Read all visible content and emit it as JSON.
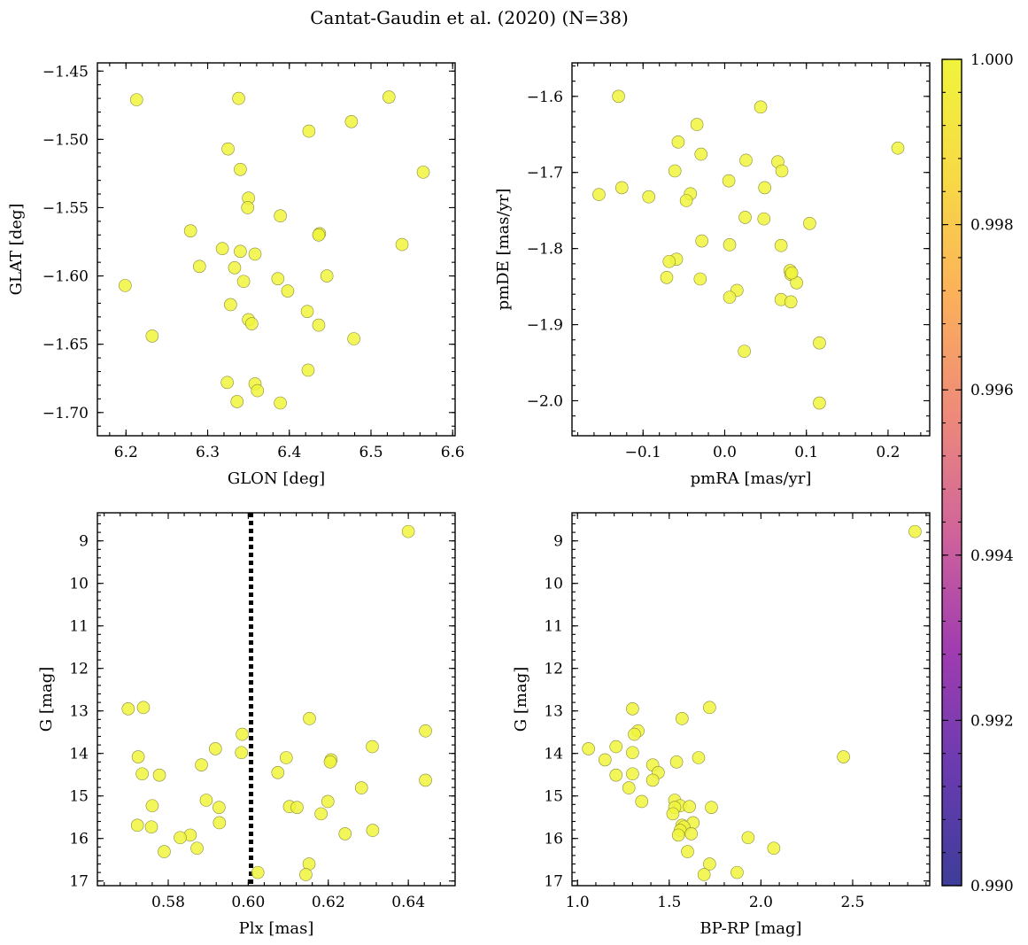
{
  "figure": {
    "title": "Cantat-Gaudin et al. (2020) (N=38)"
  },
  "colorbar": {
    "min": 0.99,
    "max": 1.0,
    "ticks": [
      "0.990",
      "0.992",
      "0.994",
      "0.996",
      "0.998",
      "1.000"
    ],
    "tick_values": [
      0.99,
      0.992,
      0.994,
      0.996,
      0.998,
      1.0
    ],
    "colormap": "plasma",
    "stops": [
      "#3d3d99",
      "#6a3bb0",
      "#a03cb0",
      "#d0649a",
      "#ee8a7a",
      "#fbb05a",
      "#f7da45",
      "#f0f43c"
    ]
  },
  "point_color": "#f0f43c",
  "chart_data": [
    {
      "type": "scatter",
      "id": "glon-glat",
      "xlabel": "GLON [deg]",
      "ylabel": "GLAT [deg]",
      "xlim": [
        6.165,
        6.603
      ],
      "ylim": [
        -1.717,
        -1.444
      ],
      "invert_y": false,
      "xticks": [
        6.2,
        6.3,
        6.4,
        6.5,
        6.6
      ],
      "xtick_labels": [
        "6.2",
        "6.3",
        "6.4",
        "6.5",
        "6.6"
      ],
      "yticks": [
        -1.7,
        -1.65,
        -1.6,
        -1.55,
        -1.5,
        -1.45
      ],
      "ytick_labels": [
        "−1.70",
        "−1.65",
        "−1.60",
        "−1.55",
        "−1.50",
        "−1.45"
      ],
      "x": [
        6.213,
        6.338,
        6.522,
        6.476,
        6.424,
        6.325,
        6.564,
        6.34,
        6.35,
        6.349,
        6.389,
        6.437,
        6.436,
        6.279,
        6.538,
        6.318,
        6.34,
        6.358,
        6.29,
        6.333,
        6.344,
        6.386,
        6.446,
        6.199,
        6.398,
        6.328,
        6.422,
        6.35,
        6.354,
        6.436,
        6.232,
        6.479,
        6.423,
        6.324,
        6.358,
        6.361,
        6.336,
        6.389
      ],
      "y": [
        -1.471,
        -1.47,
        -1.469,
        -1.487,
        -1.494,
        -1.507,
        -1.524,
        -1.522,
        -1.543,
        -1.55,
        -1.556,
        -1.569,
        -1.57,
        -1.567,
        -1.577,
        -1.58,
        -1.582,
        -1.584,
        -1.593,
        -1.594,
        -1.604,
        -1.602,
        -1.6,
        -1.607,
        -1.611,
        -1.621,
        -1.626,
        -1.632,
        -1.635,
        -1.636,
        -1.644,
        -1.646,
        -1.669,
        -1.678,
        -1.679,
        -1.684,
        -1.692,
        -1.693
      ]
    },
    {
      "type": "scatter",
      "id": "pmra-pmde",
      "xlabel": "pmRA [mas/yr]",
      "ylabel": "pmDE [mas/yr]",
      "xlim": [
        -0.187,
        0.251
      ],
      "ylim": [
        -2.046,
        -1.556
      ],
      "invert_y": false,
      "xticks": [
        -0.1,
        0.0,
        0.1,
        0.2
      ],
      "xtick_labels": [
        "−0.1",
        "0.0",
        "0.1",
        "0.2"
      ],
      "yticks": [
        -2.0,
        -1.9,
        -1.8,
        -1.7,
        -1.6
      ],
      "ytick_labels": [
        "−2.0",
        "−1.9",
        "−1.8",
        "−1.7",
        "−1.6"
      ],
      "x": [
        -0.13,
        0.044,
        -0.034,
        0.212,
        -0.057,
        -0.029,
        0.065,
        0.026,
        -0.061,
        0.07,
        0.005,
        -0.126,
        -0.154,
        0.049,
        -0.093,
        -0.042,
        -0.047,
        0.025,
        0.048,
        0.104,
        -0.028,
        0.006,
        0.069,
        0.08,
        0.081,
        0.088,
        -0.059,
        -0.068,
        -0.071,
        -0.03,
        0.015,
        0.006,
        0.069,
        0.081,
        0.116,
        0.024,
        0.116,
        0.082
      ],
      "y": [
        -1.6,
        -1.614,
        -1.637,
        -1.668,
        -1.66,
        -1.676,
        -1.686,
        -1.684,
        -1.698,
        -1.698,
        -1.711,
        -1.72,
        -1.729,
        -1.72,
        -1.732,
        -1.728,
        -1.737,
        -1.759,
        -1.761,
        -1.767,
        -1.79,
        -1.795,
        -1.796,
        -1.829,
        -1.834,
        -1.845,
        -1.814,
        -1.817,
        -1.838,
        -1.84,
        -1.855,
        -1.864,
        -1.867,
        -1.87,
        -1.924,
        -1.935,
        -2.003,
        -1.832
      ]
    },
    {
      "type": "scatter",
      "id": "plx-g",
      "xlabel": "Plx [mas]",
      "ylabel": "G [mag]",
      "xlim": [
        0.5623,
        0.6517
      ],
      "ylim": [
        8.34,
        17.11
      ],
      "invert_y": true,
      "vline": {
        "x": 0.6007,
        "style": "dotted",
        "color": "#000000"
      },
      "xticks": [
        0.58,
        0.6,
        0.62,
        0.64
      ],
      "xtick_labels": [
        "0.58",
        "0.60",
        "0.62",
        "0.64"
      ],
      "yticks": [
        9,
        10,
        11,
        12,
        13,
        14,
        15,
        16,
        17
      ],
      "ytick_labels": [
        "9",
        "10",
        "11",
        "12",
        "13",
        "14",
        "15",
        "16",
        "17"
      ],
      "x": [
        0.64,
        0.57,
        0.5738,
        0.6153,
        0.6443,
        0.5985,
        0.631,
        0.5918,
        0.5983,
        0.6095,
        0.6207,
        0.6205,
        0.5725,
        0.5883,
        0.6074,
        0.5735,
        0.5778,
        0.6283,
        0.6443,
        0.5895,
        0.6199,
        0.576,
        0.6103,
        0.5927,
        0.6122,
        0.6182,
        0.5928,
        0.5723,
        0.5758,
        0.6311,
        0.6242,
        0.5855,
        0.583,
        0.5872,
        0.579,
        0.6152,
        0.6024,
        0.6144
      ],
      "y": [
        8.78,
        12.95,
        12.92,
        13.18,
        13.47,
        13.55,
        13.84,
        13.89,
        13.98,
        14.1,
        14.15,
        14.2,
        14.08,
        14.27,
        14.45,
        14.48,
        14.51,
        14.81,
        14.63,
        15.1,
        15.13,
        15.23,
        15.25,
        15.27,
        15.27,
        15.42,
        15.63,
        15.69,
        15.73,
        15.81,
        15.89,
        15.92,
        15.98,
        16.23,
        16.31,
        16.6,
        16.8,
        16.85
      ]
    },
    {
      "type": "scatter",
      "id": "bprp-g",
      "xlabel": "BP-RP [mag]",
      "ylabel": "G [mag]",
      "xlim": [
        0.97,
        2.92
      ],
      "ylim": [
        8.34,
        17.11
      ],
      "invert_y": true,
      "xticks": [
        1.0,
        1.5,
        2.0,
        2.5
      ],
      "xtick_labels": [
        "1.0",
        "1.5",
        "2.0",
        "2.5"
      ],
      "yticks": [
        9,
        10,
        11,
        12,
        13,
        14,
        15,
        16,
        17
      ],
      "ytick_labels": [
        "9",
        "10",
        "11",
        "12",
        "13",
        "14",
        "15",
        "16",
        "17"
      ],
      "x": [
        2.84,
        1.3,
        1.72,
        1.57,
        1.33,
        1.31,
        1.21,
        1.06,
        1.3,
        1.66,
        1.15,
        1.54,
        2.45,
        1.41,
        1.44,
        1.3,
        1.21,
        1.28,
        1.41,
        1.53,
        1.35,
        1.56,
        1.61,
        1.73,
        1.53,
        1.52,
        1.63,
        1.57,
        1.58,
        1.56,
        1.62,
        1.93,
        2.07,
        1.6,
        1.72,
        1.69,
        1.87,
        1.55
      ],
      "y": [
        8.78,
        12.95,
        12.92,
        13.18,
        13.47,
        13.55,
        13.84,
        13.89,
        13.98,
        14.1,
        14.15,
        14.2,
        14.08,
        14.27,
        14.45,
        14.48,
        14.51,
        14.81,
        14.63,
        15.1,
        15.13,
        15.23,
        15.25,
        15.27,
        15.27,
        15.42,
        15.63,
        15.69,
        15.73,
        15.81,
        15.89,
        15.98,
        16.23,
        16.31,
        16.6,
        16.85,
        16.8,
        15.92
      ]
    }
  ]
}
